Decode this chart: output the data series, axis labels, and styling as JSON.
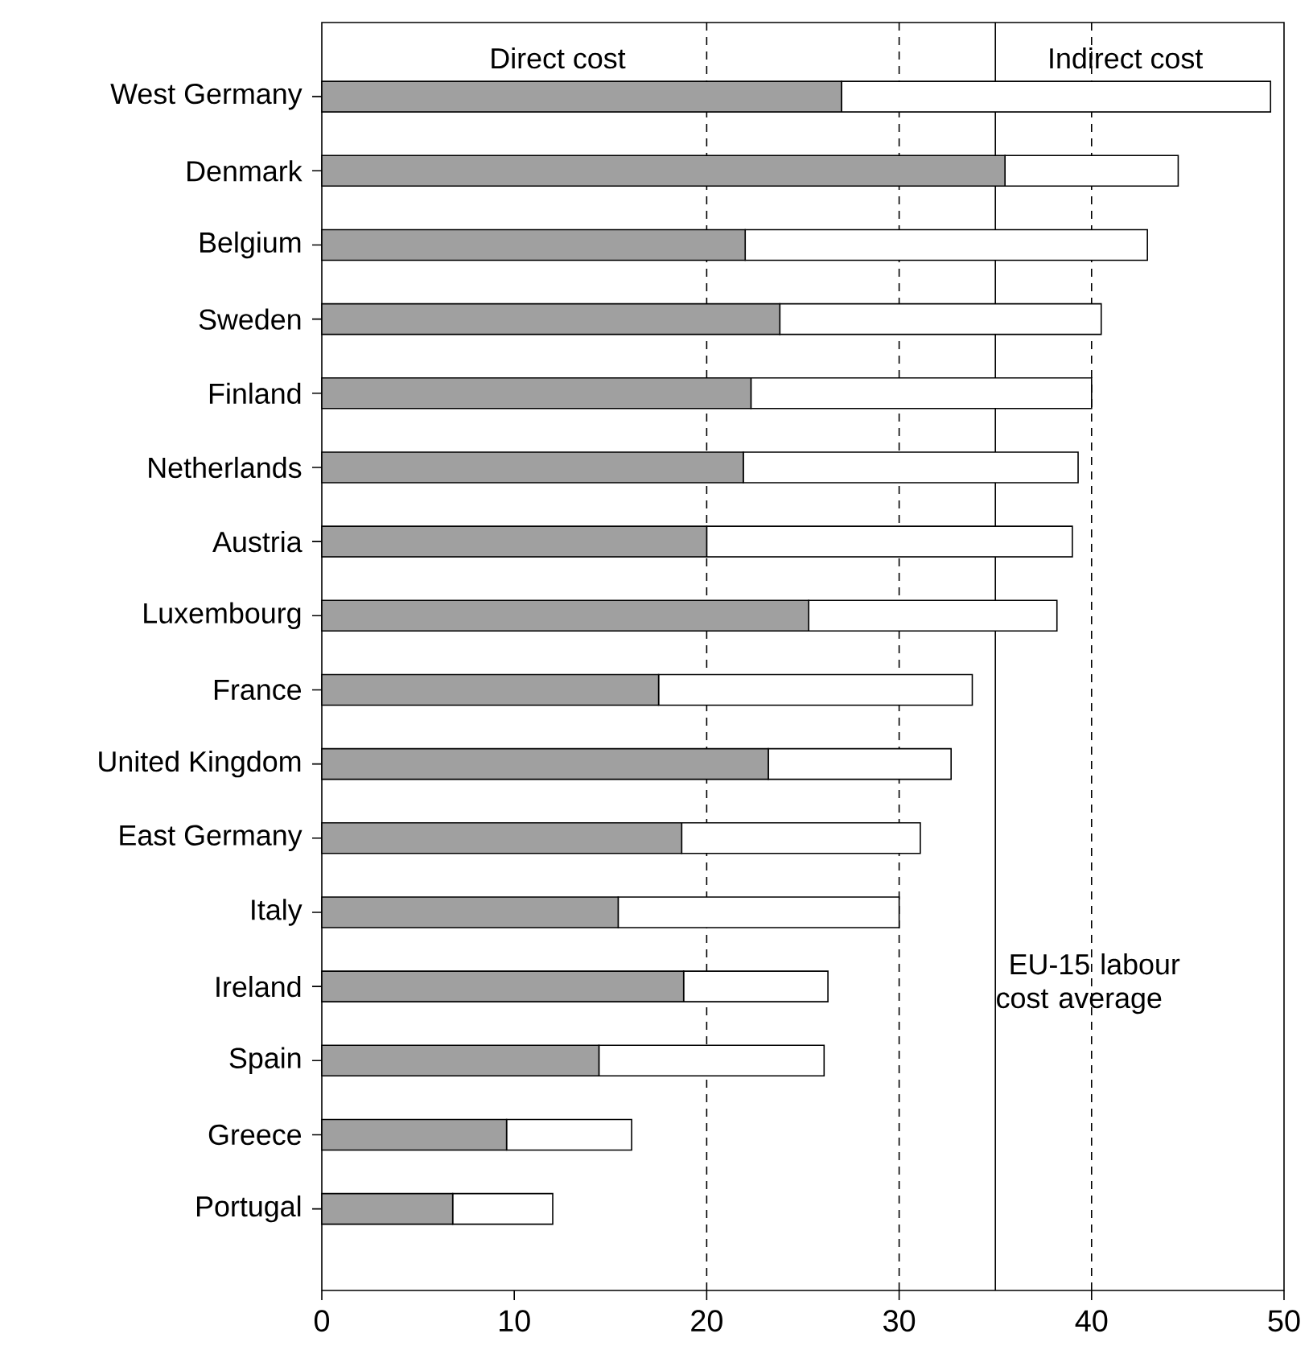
{
  "chart_data": {
    "type": "bar",
    "orientation": "horizontal",
    "stacked": true,
    "categories": [
      "West Germany",
      "Denmark",
      "Belgium",
      "Sweden",
      "Finland",
      "Netherlands",
      "Austria",
      "Luxembourg",
      "France",
      "United Kingdom",
      "East Germany",
      "Italy",
      "Ireland",
      "Spain",
      "Greece",
      "Portugal"
    ],
    "series": [
      {
        "name": "Direct cost",
        "color": "#a0a0a0",
        "values": [
          27.0,
          35.5,
          22.0,
          23.8,
          22.3,
          21.9,
          20.0,
          25.3,
          17.5,
          23.2,
          18.7,
          15.4,
          18.8,
          14.4,
          9.6,
          6.8
        ]
      },
      {
        "name": "Indirect cost",
        "color": "#ffffff",
        "values": [
          22.3,
          9.0,
          20.9,
          16.7,
          17.7,
          17.4,
          19.0,
          12.9,
          16.3,
          9.5,
          12.4,
          14.6,
          7.5,
          11.7,
          6.5,
          5.2
        ]
      }
    ],
    "xlim": [
      0,
      50
    ],
    "xticks": [
      0,
      10,
      20,
      30,
      40,
      50
    ],
    "ref_lines": [
      {
        "axis": "x",
        "value": 20,
        "line_style": "dashed"
      },
      {
        "axis": "x",
        "value": 30,
        "line_style": "dashed"
      },
      {
        "axis": "x",
        "value": 40,
        "line_style": "dashed"
      },
      {
        "axis": "x",
        "value": 35,
        "label": "EU-15 labour cost average",
        "line_style": "solid"
      }
    ]
  }
}
